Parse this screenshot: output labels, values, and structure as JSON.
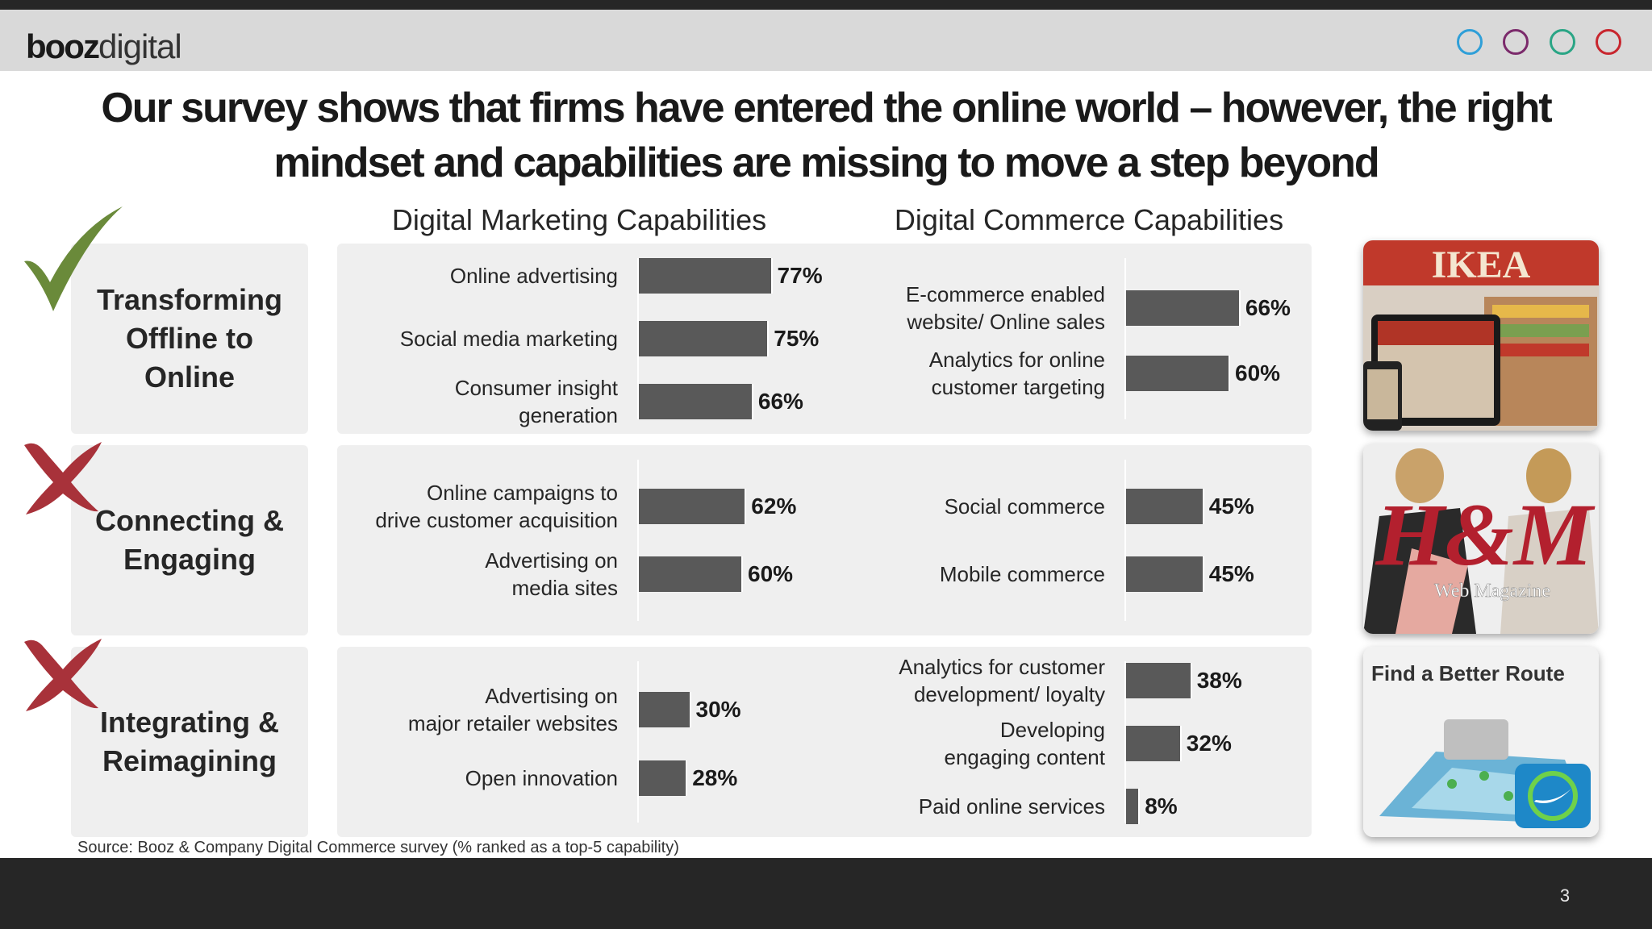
{
  "header": {
    "logo_bold": "booz",
    "logo_light": "digital",
    "circle_colors": [
      "#2f9fd8",
      "#7b2a6b",
      "#2aa585",
      "#c8262e"
    ]
  },
  "title": {
    "line1": "Our survey shows that firms have entered the online world – however, the right",
    "line2": "mindset and capabilities are missing to move a step beyond"
  },
  "columns": {
    "marketing": "Digital Marketing Capabilities",
    "commerce": "Digital Commerce Capabilities"
  },
  "rows": [
    {
      "label_lines": [
        "Transforming",
        "Offline to",
        "Online"
      ],
      "status": "check",
      "marketing": [
        {
          "label_lines": [
            "Online advertising"
          ],
          "value": 77,
          "value_label": "77%"
        },
        {
          "label_lines": [
            "Social media marketing"
          ],
          "value": 75,
          "value_label": "75%"
        },
        {
          "label_lines": [
            "Consumer insight",
            "generation"
          ],
          "value": 66,
          "value_label": "66%"
        }
      ],
      "commerce": [
        {
          "label_lines": [
            "E-commerce enabled",
            "website/ Online sales"
          ],
          "value": 66,
          "value_label": "66%"
        },
        {
          "label_lines": [
            "Analytics for online",
            "customer targeting"
          ],
          "value": 60,
          "value_label": "60%"
        }
      ]
    },
    {
      "label_lines": [
        "Connecting &",
        "Engaging"
      ],
      "status": "cross",
      "marketing": [
        {
          "label_lines": [
            "Online campaigns to",
            "drive customer acquisition"
          ],
          "value": 62,
          "value_label": "62%"
        },
        {
          "label_lines": [
            "Advertising on",
            "media sites"
          ],
          "value": 60,
          "value_label": "60%"
        }
      ],
      "commerce": [
        {
          "label_lines": [
            "Social commerce"
          ],
          "value": 45,
          "value_label": "45%"
        },
        {
          "label_lines": [
            "Mobile commerce"
          ],
          "value": 45,
          "value_label": "45%"
        }
      ]
    },
    {
      "label_lines": [
        "Integrating &",
        "Reimagining"
      ],
      "status": "cross",
      "marketing": [
        {
          "label_lines": [
            "Advertising on",
            "major retailer websites"
          ],
          "value": 30,
          "value_label": "30%"
        },
        {
          "label_lines": [
            "Open innovation"
          ],
          "value": 28,
          "value_label": "28%"
        }
      ],
      "commerce": [
        {
          "label_lines": [
            "Analytics for customer",
            "development/ loyalty"
          ],
          "value": 38,
          "value_label": "38%"
        },
        {
          "label_lines": [
            "Developing",
            "engaging content"
          ],
          "value": 32,
          "value_label": "32%"
        },
        {
          "label_lines": [
            "Paid online services"
          ],
          "value": 8,
          "value_label": "8%"
        }
      ]
    }
  ],
  "images": [
    {
      "name": "ikea-image",
      "brand_text": "IKEA"
    },
    {
      "name": "hm-web-magazine-image",
      "brand_text": "H&M",
      "caption": "Web Magazine"
    },
    {
      "name": "find-better-route-image",
      "caption": "Find a Better Route"
    }
  ],
  "source": "Source: Booz & Company Digital Commerce survey (% ranked as a top-5 capability)",
  "page_number": "3",
  "colors": {
    "bar": "#595959",
    "check": "#6a8a3a",
    "cross": "#a8323a",
    "panel": "#efefef"
  }
}
